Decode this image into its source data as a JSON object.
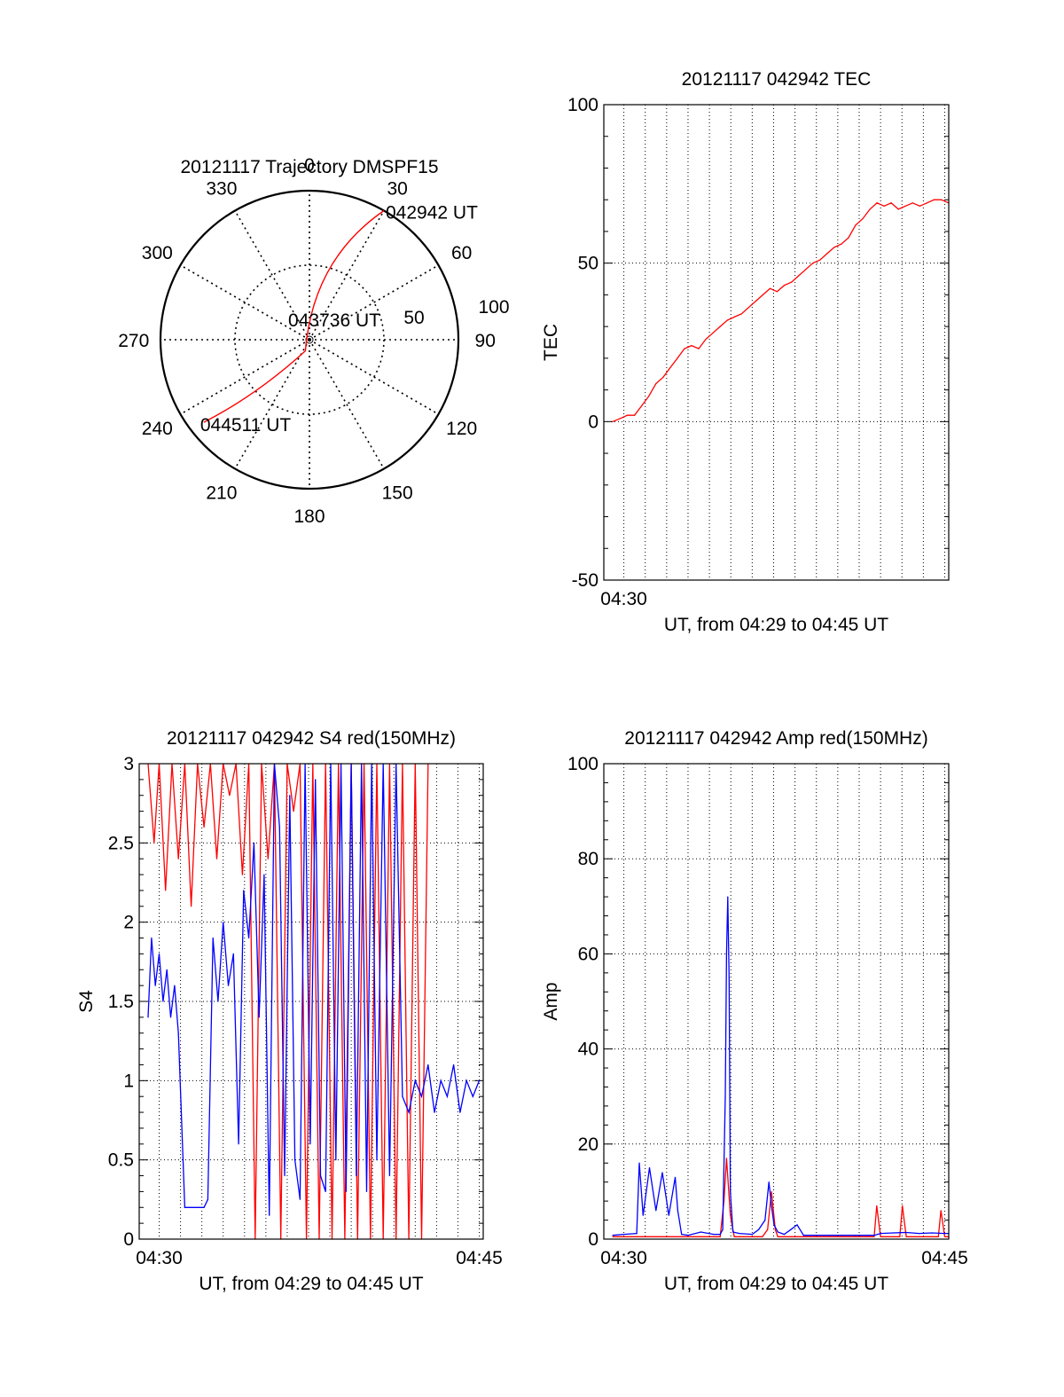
{
  "colors": {
    "red": "#ff0000",
    "blue": "#0000ff",
    "axis": "#000000",
    "grid": "#000000"
  },
  "chart_data": [
    {
      "type": "polar",
      "title": "20121117 Trajectory DMSPF15",
      "angle_labels": [
        "0",
        "30",
        "60",
        "90",
        "120",
        "150",
        "180",
        "210",
        "240",
        "270",
        "300",
        "330"
      ],
      "radial_labels": [
        "50",
        "100"
      ],
      "track": [
        {
          "az": 30,
          "r": 100
        },
        {
          "az": 200,
          "r": 8
        },
        {
          "az": 232,
          "r": 90
        }
      ],
      "annotations": [
        {
          "label": "042942 UT",
          "az": 30,
          "r": 100
        },
        {
          "label": "043736 UT",
          "az": 0,
          "r": 0
        },
        {
          "label": "044511 UT",
          "az": 232,
          "r": 90
        }
      ]
    },
    {
      "type": "line",
      "title": "20121117 042942 TEC",
      "xlabel": "UT, from 04:29 to 04:45 UT",
      "ylabel": "TEC",
      "xlim": [
        4.4844,
        4.7531
      ],
      "ylim": [
        -50,
        100
      ],
      "xticks": [
        {
          "v": 4.5,
          "label": "04:30"
        }
      ],
      "yticks": [
        -50,
        0,
        50,
        100
      ],
      "grid": true,
      "series": [
        {
          "color": "red",
          "x": [
            4.4913,
            4.4972,
            4.5028,
            4.5083,
            4.5139,
            4.5194,
            4.525,
            4.5306,
            4.5361,
            4.5417,
            4.5472,
            4.5528,
            4.5583,
            4.5639,
            4.5694,
            4.575,
            4.5806,
            4.5861,
            4.5917,
            4.5972,
            4.6028,
            4.6083,
            4.6139,
            4.6194,
            4.625,
            4.6306,
            4.6361,
            4.6417,
            4.6472,
            4.6528,
            4.6583,
            4.6639,
            4.6694,
            4.675,
            4.6806,
            4.6861,
            4.6917,
            4.6972,
            4.7028,
            4.7083,
            4.7139,
            4.7194,
            4.725,
            4.7306,
            4.7361,
            4.7417,
            4.7472,
            4.7531
          ],
          "y": [
            0,
            1,
            2,
            2,
            5,
            8,
            12,
            14,
            17,
            20,
            23,
            24,
            23,
            26,
            28,
            30,
            32,
            33,
            34,
            36,
            38,
            40,
            42,
            41,
            43,
            44,
            46,
            48,
            50,
            51,
            53,
            55,
            56,
            58,
            62,
            64,
            67,
            69,
            68,
            69,
            67,
            68,
            69,
            68,
            69,
            70,
            70,
            69
          ]
        }
      ]
    },
    {
      "type": "line",
      "title": "20121117 042942 S4 red(150MHz)",
      "xlabel": "UT, from 04:29 to 04:45 UT",
      "ylabel": "S4",
      "xlim": [
        4.4844,
        4.7531
      ],
      "ylim": [
        0,
        3
      ],
      "xticks": [
        {
          "v": 4.5,
          "label": "04:30"
        },
        {
          "v": 4.75,
          "label": "04:45"
        }
      ],
      "yticks": [
        0,
        0.5,
        1,
        1.5,
        2,
        2.5,
        3
      ],
      "ytick_labels": [
        "0",
        "0.5",
        "1",
        "1.5",
        "2",
        "2.5",
        "3"
      ],
      "grid": true,
      "series": [
        {
          "color": "red",
          "x": [
            4.4913,
            4.496,
            4.5,
            4.505,
            4.51,
            4.515,
            4.52,
            4.525,
            4.53,
            4.535,
            4.54,
            4.545,
            4.55,
            4.555,
            4.56,
            4.565,
            4.57,
            4.575,
            4.58,
            4.585,
            4.59,
            4.595,
            4.6,
            4.605,
            4.61,
            4.615,
            4.62,
            4.625,
            4.63,
            4.635,
            4.64,
            4.645,
            4.65,
            4.655,
            4.66,
            4.665,
            4.67,
            4.675,
            4.68,
            4.685,
            4.69,
            4.695,
            4.7,
            4.705,
            4.71
          ],
          "y": [
            3,
            2.5,
            3,
            2.2,
            3,
            2.4,
            3,
            2.1,
            3,
            2.6,
            3,
            2.4,
            3,
            2.8,
            3,
            2.3,
            3,
            0,
            3,
            2.4,
            3,
            0,
            3,
            2.7,
            3,
            0,
            3,
            0,
            3,
            0,
            3,
            0,
            3,
            0,
            3,
            0,
            3,
            0,
            3,
            0,
            3,
            0,
            3,
            0,
            3
          ]
        },
        {
          "color": "blue",
          "x": [
            4.4913,
            4.494,
            4.497,
            4.5,
            4.503,
            4.506,
            4.509,
            4.512,
            4.515,
            4.52,
            4.525,
            4.53,
            4.535,
            4.538,
            4.542,
            4.546,
            4.55,
            4.554,
            4.558,
            4.562,
            4.566,
            4.57,
            4.574,
            4.578,
            4.582,
            4.586,
            4.59,
            4.594,
            4.598,
            4.602,
            4.606,
            4.61,
            4.614,
            4.618,
            4.622,
            4.626,
            4.63,
            4.634,
            4.638,
            4.642,
            4.646,
            4.65,
            4.654,
            4.658,
            4.662,
            4.666,
            4.67,
            4.675,
            4.68,
            4.685,
            4.69,
            4.695,
            4.7,
            4.705,
            4.71,
            4.715,
            4.72,
            4.725,
            4.73,
            4.735,
            4.74,
            4.745,
            4.75
          ],
          "y": [
            1.4,
            1.9,
            1.6,
            1.8,
            1.5,
            1.7,
            1.4,
            1.6,
            1.3,
            0.2,
            0.2,
            0.2,
            0.2,
            0.25,
            1.9,
            1.5,
            2.0,
            1.6,
            1.8,
            0.6,
            2.2,
            1.9,
            2.5,
            1.4,
            2.3,
            0.15,
            3.0,
            2.6,
            0.4,
            2.8,
            0.5,
            0.25,
            3.0,
            0.6,
            2.9,
            0.4,
            0.3,
            3.0,
            0.5,
            3.0,
            0.3,
            3.0,
            0.4,
            3.0,
            0.3,
            3.0,
            0.5,
            3.0,
            0.4,
            3.0,
            0.9,
            0.8,
            1.0,
            0.9,
            1.1,
            0.8,
            1.0,
            0.9,
            1.1,
            0.8,
            1.0,
            0.9,
            1.0
          ]
        }
      ]
    },
    {
      "type": "line",
      "title": "20121117 042942 Amp red(150MHz)",
      "xlabel": "UT, from 04:29 to 04:45 UT",
      "ylabel": "Amp",
      "xlim": [
        4.4844,
        4.7531
      ],
      "ylim": [
        0,
        100
      ],
      "xticks": [
        {
          "v": 4.5,
          "label": "04:30"
        },
        {
          "v": 4.75,
          "label": "04:45"
        }
      ],
      "yticks": [
        0,
        20,
        40,
        60,
        80,
        100
      ],
      "grid": true,
      "series": [
        {
          "color": "red",
          "x": [
            4.4913,
            4.5,
            4.51,
            4.52,
            4.53,
            4.54,
            4.55,
            4.56,
            4.57,
            4.575,
            4.578,
            4.58,
            4.583,
            4.586,
            4.59,
            4.6,
            4.608,
            4.612,
            4.615,
            4.618,
            4.62,
            4.63,
            4.64,
            4.65,
            4.66,
            4.67,
            4.68,
            4.69,
            4.695,
            4.697,
            4.7,
            4.71,
            4.715,
            4.717,
            4.72,
            4.73,
            4.74,
            4.745,
            4.747,
            4.75,
            4.7531
          ],
          "y": [
            0.5,
            0.5,
            0.5,
            0.5,
            0.5,
            0.5,
            0.5,
            0.5,
            0.5,
            0.5,
            8,
            17,
            5,
            0.5,
            0.5,
            0.5,
            0.5,
            2,
            10,
            2,
            0.5,
            0.5,
            0.5,
            0.5,
            0.5,
            0.5,
            0.5,
            0.5,
            0.5,
            7,
            0.5,
            0.5,
            0.5,
            7,
            0.5,
            0.5,
            0.5,
            0.5,
            6,
            0.5,
            0.5
          ]
        },
        {
          "color": "blue",
          "x": [
            4.4913,
            4.5,
            4.51,
            4.512,
            4.515,
            4.52,
            4.525,
            4.53,
            4.535,
            4.54,
            4.542,
            4.545,
            4.55,
            4.56,
            4.57,
            4.575,
            4.577,
            4.579,
            4.58,
            4.581,
            4.582,
            4.583,
            4.585,
            4.59,
            4.6,
            4.605,
            4.61,
            4.613,
            4.615,
            4.617,
            4.62,
            4.625,
            4.63,
            4.635,
            4.64,
            4.65,
            4.66,
            4.67,
            4.68,
            4.69,
            4.695,
            4.7,
            4.71,
            4.72,
            4.73,
            4.74,
            4.75,
            4.7531
          ],
          "y": [
            0.8,
            1.0,
            1.2,
            16,
            5,
            15,
            6,
            14,
            5,
            13,
            6,
            1.0,
            0.8,
            1.5,
            1.0,
            1.0,
            2,
            30,
            60,
            72,
            55,
            10,
            1.5,
            1.2,
            1.0,
            2,
            4,
            12,
            7,
            3,
            1.5,
            1.0,
            2,
            3,
            0.8,
            0.8,
            0.8,
            0.8,
            0.8,
            0.8,
            0.8,
            1.2,
            1.3,
            1.4,
            1.2,
            1.3,
            1.2,
            1.2
          ]
        }
      ]
    }
  ]
}
